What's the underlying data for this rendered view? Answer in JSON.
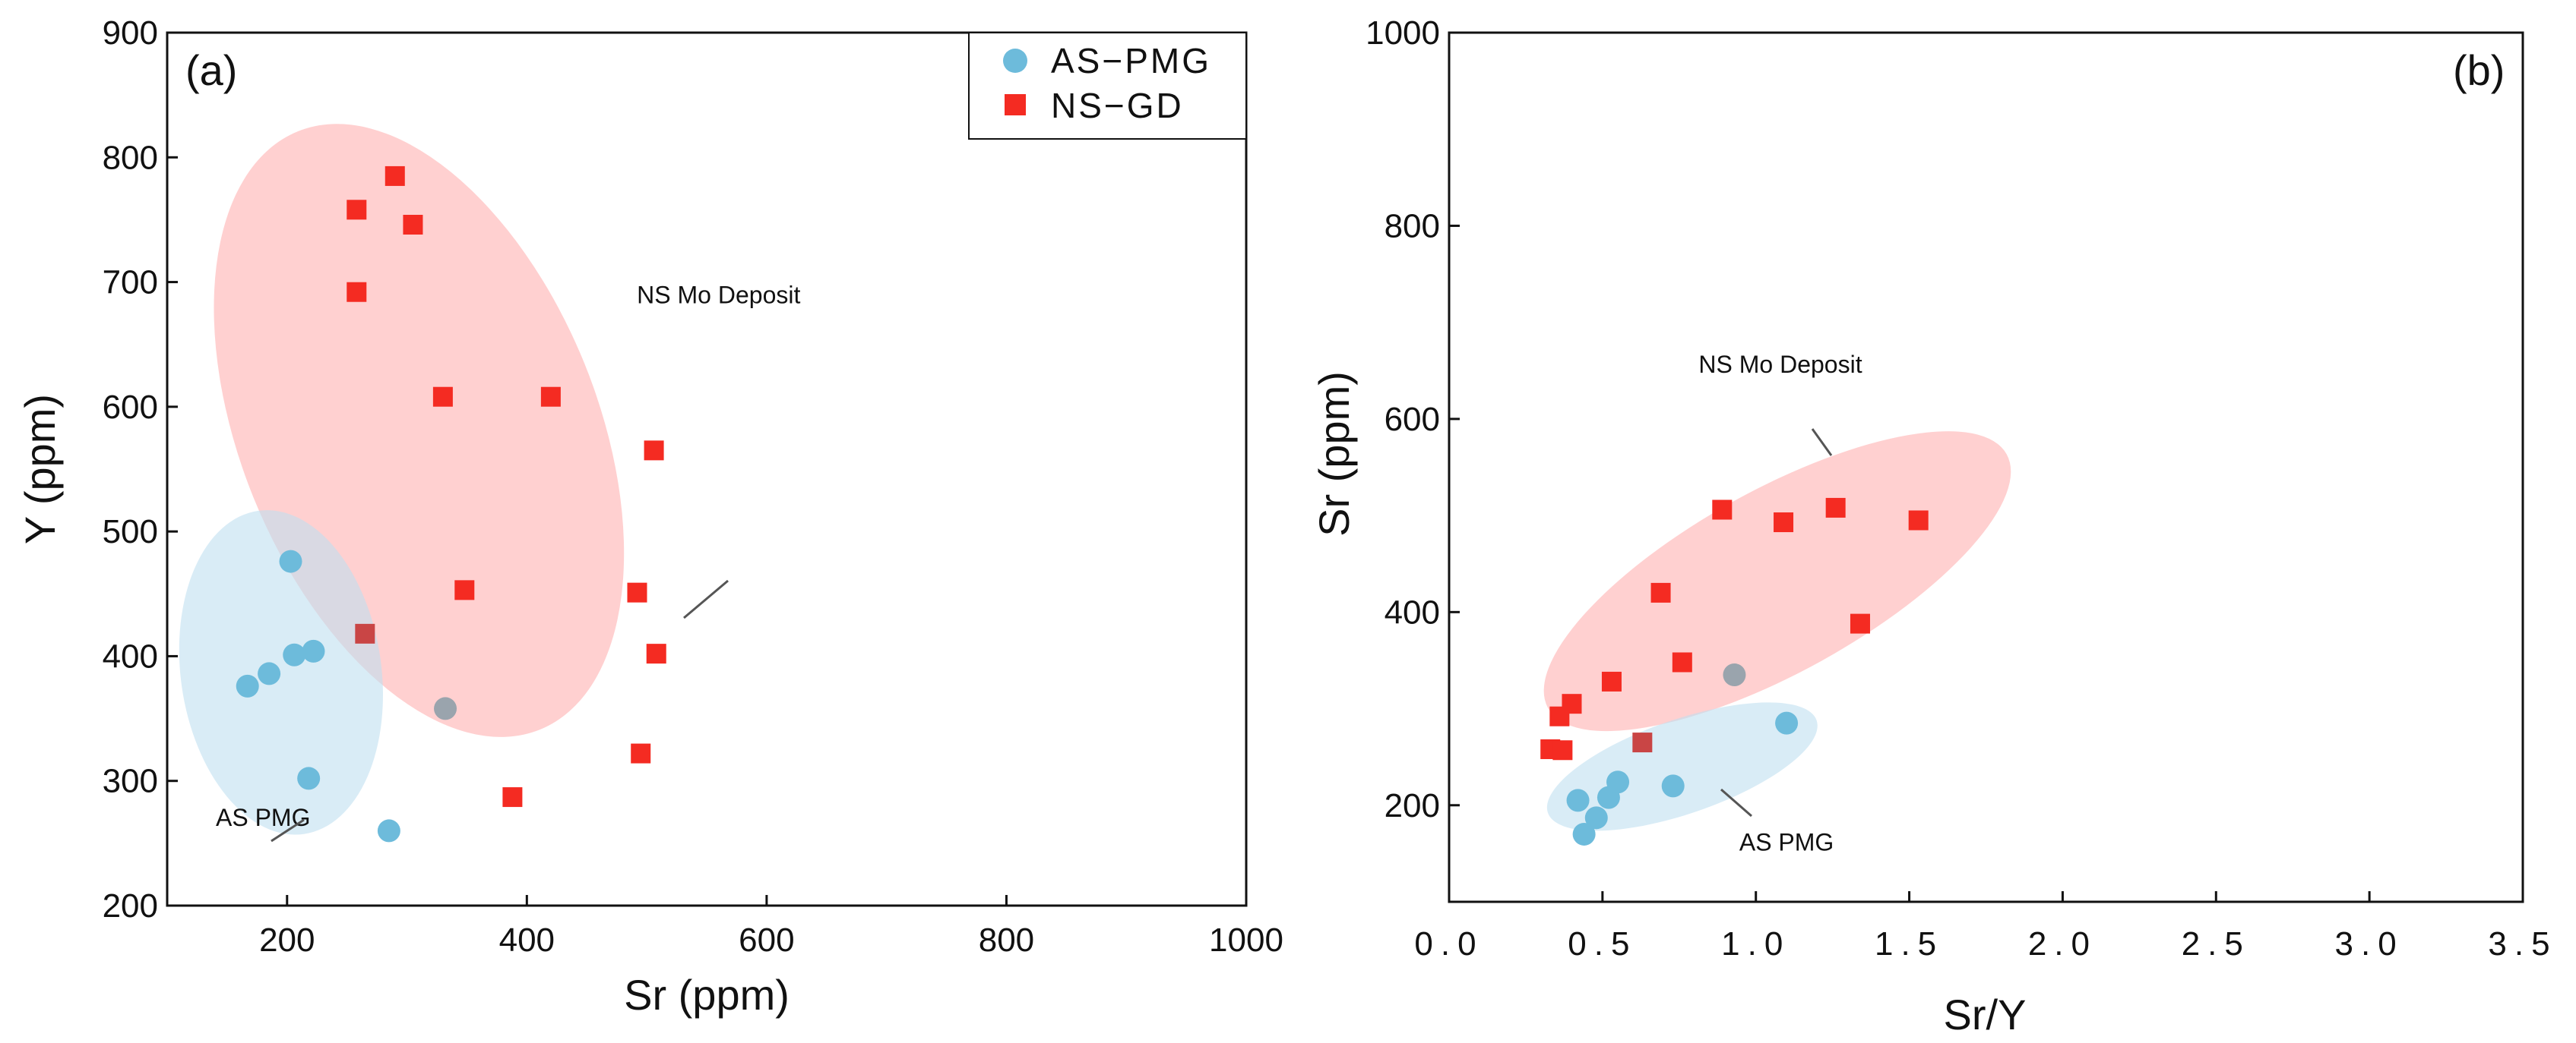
{
  "colors": {
    "as_pmg": "#6dbbdb",
    "ns_gd": "#f42b22",
    "ns_field": "#ffb3b3",
    "as_field": "#bfe0f0",
    "overlap_marker_a": "#c94545",
    "overlap_marker_b": "#9aa4ad"
  },
  "legend": {
    "as_pmg": "AS−PMG",
    "ns_gd": "NS−GD"
  },
  "chart_data": [
    {
      "panel": "(a)",
      "type": "scatter",
      "xlabel": "Sr (ppm)",
      "ylabel": "Y (ppm)",
      "xlim": [
        100,
        1000
      ],
      "ylim": [
        200,
        900
      ],
      "xticks": [
        "200",
        "400",
        "600",
        "800",
        "1000"
      ],
      "yticks": [
        "200",
        "300",
        "400",
        "500",
        "600",
        "700",
        "800",
        "900"
      ],
      "xtick_values": [
        200,
        400,
        600,
        800,
        1000
      ],
      "ytick_values": [
        200,
        300,
        400,
        500,
        600,
        700,
        800,
        900
      ],
      "legend_position": "top-right",
      "series": [
        {
          "name": "AS−PMG",
          "marker": "circle",
          "points": [
            [
              167,
              376
            ],
            [
              185,
              386
            ],
            [
              203,
              476
            ],
            [
              206,
              401
            ],
            [
              222,
              404
            ],
            [
              218,
              302
            ],
            [
              285,
              260
            ],
            [
              332,
              358
            ]
          ]
        },
        {
          "name": "NS−GD",
          "marker": "square",
          "points": [
            [
              290,
              785
            ],
            [
              258,
              758
            ],
            [
              305,
              746
            ],
            [
              258,
              692
            ],
            [
              330,
              608
            ],
            [
              420,
              608
            ],
            [
              506,
              565
            ],
            [
              348,
              453
            ],
            [
              492,
              451
            ],
            [
              265,
              418
            ],
            [
              508,
              402
            ],
            [
              495,
              322
            ],
            [
              388,
              287
            ]
          ]
        }
      ],
      "fields": [
        {
          "label": "NS Mo Deposit",
          "center": [
            310,
            581
          ],
          "rx_data": 162,
          "ry_data": 250,
          "rotation_deg": -22
        },
        {
          "label": "AS PMG",
          "center": [
            195,
            387
          ],
          "rx_data": 85,
          "ry_data": 130,
          "rotation_deg": -8
        }
      ],
      "annotations": [
        {
          "text": "NS Mo Deposit",
          "x": 560,
          "y": 683
        },
        {
          "text": "AS PMG",
          "x": 180,
          "y": 264
        }
      ]
    },
    {
      "panel": "(b)",
      "type": "scatter",
      "xlabel": "Sr/Y",
      "ylabel": "Sr (ppm)",
      "xlim": [
        0.0,
        3.5
      ],
      "ylim": [
        100,
        1000
      ],
      "xticks": [
        "0.0",
        "0.5",
        "1.0",
        "1.5",
        "2.0",
        "2.5",
        "3.0",
        "3.5"
      ],
      "yticks": [
        "200",
        "400",
        "600",
        "800",
        "1000"
      ],
      "xtick_values": [
        0.0,
        0.5,
        1.0,
        1.5,
        2.0,
        2.5,
        3.0,
        3.5
      ],
      "ytick_values": [
        200,
        400,
        600,
        800,
        1000
      ],
      "series": [
        {
          "name": "AS−PMG",
          "marker": "circle",
          "points": [
            [
              0.42,
              205
            ],
            [
              0.44,
              170
            ],
            [
              0.48,
              187
            ],
            [
              0.52,
              208
            ],
            [
              0.55,
              224
            ],
            [
              0.73,
              220
            ],
            [
              0.93,
              335
            ],
            [
              1.1,
              285
            ]
          ]
        },
        {
          "name": "NS−GD",
          "marker": "square",
          "points": [
            [
              0.33,
              258
            ],
            [
              0.36,
              292
            ],
            [
              0.37,
              257
            ],
            [
              0.4,
              305
            ],
            [
              0.53,
              328
            ],
            [
              0.63,
              265
            ],
            [
              0.69,
              420
            ],
            [
              0.76,
              348
            ],
            [
              0.89,
              506
            ],
            [
              1.09,
              493
            ],
            [
              1.26,
              508
            ],
            [
              1.34,
              388
            ],
            [
              1.53,
              495
            ]
          ]
        }
      ],
      "fields": [
        {
          "label": "NS Mo Deposit",
          "center": [
            1.07,
            432
          ],
          "rx_data": 0.82,
          "ry_data": 115,
          "rotation_deg": -29
        },
        {
          "label": "AS PMG",
          "center": [
            0.76,
            240
          ],
          "rx_data": 0.49,
          "ry_data": 60,
          "rotation_deg": -19
        }
      ],
      "annotations": [
        {
          "text": "NS Mo Deposit",
          "x": 1.08,
          "y": 648
        },
        {
          "text": "AS PMG",
          "x": 1.1,
          "y": 153
        }
      ]
    }
  ]
}
